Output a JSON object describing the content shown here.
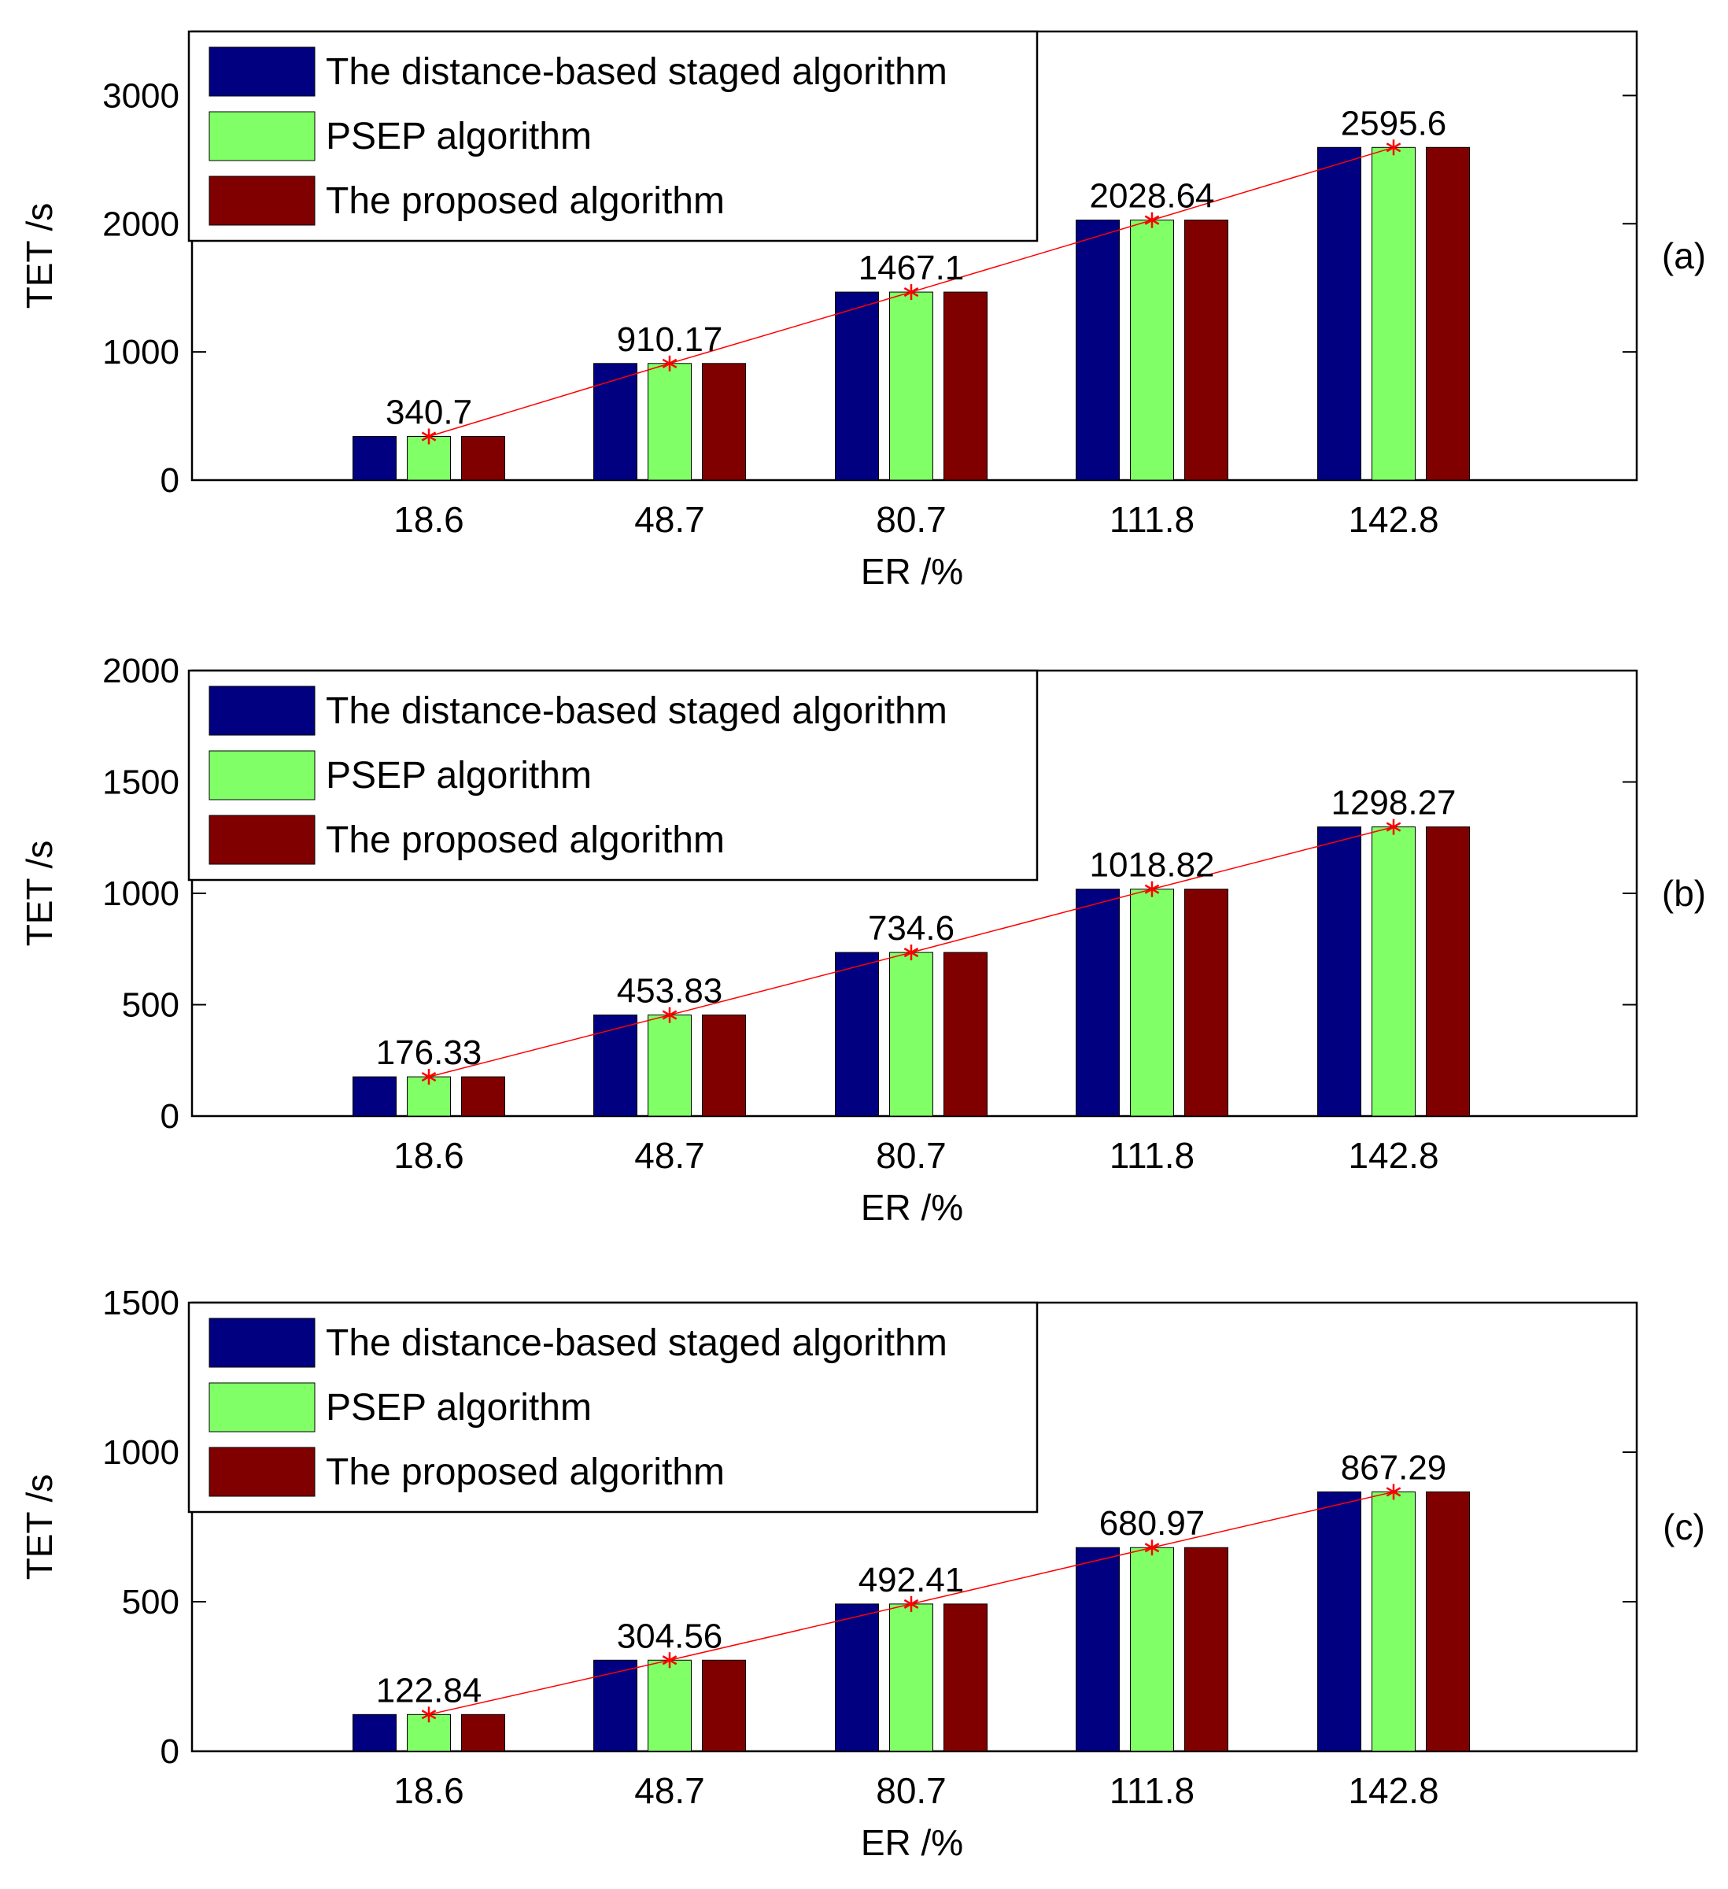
{
  "legend_labels": [
    "The distance-based staged algorithm",
    "PSEP algorithm",
    "The proposed algorithm"
  ],
  "colors": {
    "series1": "#000080",
    "series2": "#80ff66",
    "series3": "#800000",
    "line": "#ff0000",
    "axis": "#000000"
  },
  "chart_data": [
    {
      "type": "bar",
      "panel_label": "(a)",
      "xlabel": "ER /%",
      "ylabel": "TET /s",
      "categories": [
        "18.6",
        "48.7",
        "80.7",
        "111.8",
        "142.8"
      ],
      "ylim": [
        0,
        3500
      ],
      "yticks": [
        0,
        1000,
        2000,
        3000
      ],
      "ytick_labels": [
        "0",
        "1000",
        "2000",
        "3000"
      ],
      "series": [
        {
          "name": "The distance-based staged algorithm",
          "values": [
            340.7,
            910.17,
            1467.1,
            2028.64,
            2595.6
          ]
        },
        {
          "name": "PSEP algorithm",
          "values": [
            340.7,
            910.17,
            1467.1,
            2028.64,
            2595.6
          ]
        },
        {
          "name": "The proposed algorithm",
          "values": [
            340.7,
            910.17,
            1467.1,
            2028.64,
            2595.6
          ]
        }
      ],
      "annotations": [
        "340.7",
        "910.17",
        "1467.1",
        "2028.64",
        "2595.6"
      ],
      "legend_position": "top-left"
    },
    {
      "type": "bar",
      "panel_label": "(b)",
      "xlabel": "ER /%",
      "ylabel": "TET /s",
      "categories": [
        "18.6",
        "48.7",
        "80.7",
        "111.8",
        "142.8"
      ],
      "ylim": [
        0,
        2000
      ],
      "yticks": [
        0,
        500,
        1000,
        1500,
        2000
      ],
      "ytick_labels": [
        "0",
        "500",
        "1000",
        "1500",
        "2000"
      ],
      "series": [
        {
          "name": "The distance-based staged algorithm",
          "values": [
            176.33,
            453.83,
            734.6,
            1018.82,
            1298.27
          ]
        },
        {
          "name": "PSEP algorithm",
          "values": [
            176.33,
            453.83,
            734.6,
            1018.82,
            1298.27
          ]
        },
        {
          "name": "The proposed algorithm",
          "values": [
            176.33,
            453.83,
            734.6,
            1018.82,
            1298.27
          ]
        }
      ],
      "annotations": [
        "176.33",
        "453.83",
        "734.6",
        "1018.82",
        "1298.27"
      ],
      "legend_position": "top-left"
    },
    {
      "type": "bar",
      "panel_label": "(c)",
      "xlabel": "ER /%",
      "ylabel": "TET /s",
      "categories": [
        "18.6",
        "48.7",
        "80.7",
        "111.8",
        "142.8"
      ],
      "ylim": [
        0,
        1500
      ],
      "yticks": [
        0,
        500,
        1000,
        1500
      ],
      "ytick_labels": [
        "0",
        "500",
        "1000",
        "1500"
      ],
      "series": [
        {
          "name": "The distance-based staged algorithm",
          "values": [
            122.84,
            304.56,
            492.41,
            680.97,
            867.29
          ]
        },
        {
          "name": "PSEP algorithm",
          "values": [
            122.84,
            304.56,
            492.41,
            680.97,
            867.29
          ]
        },
        {
          "name": "The proposed algorithm",
          "values": [
            122.84,
            304.56,
            492.41,
            680.97,
            867.29
          ]
        }
      ],
      "annotations": [
        "122.84",
        "304.56",
        "492.41",
        "680.97",
        "867.29"
      ],
      "legend_position": "top-left"
    }
  ]
}
